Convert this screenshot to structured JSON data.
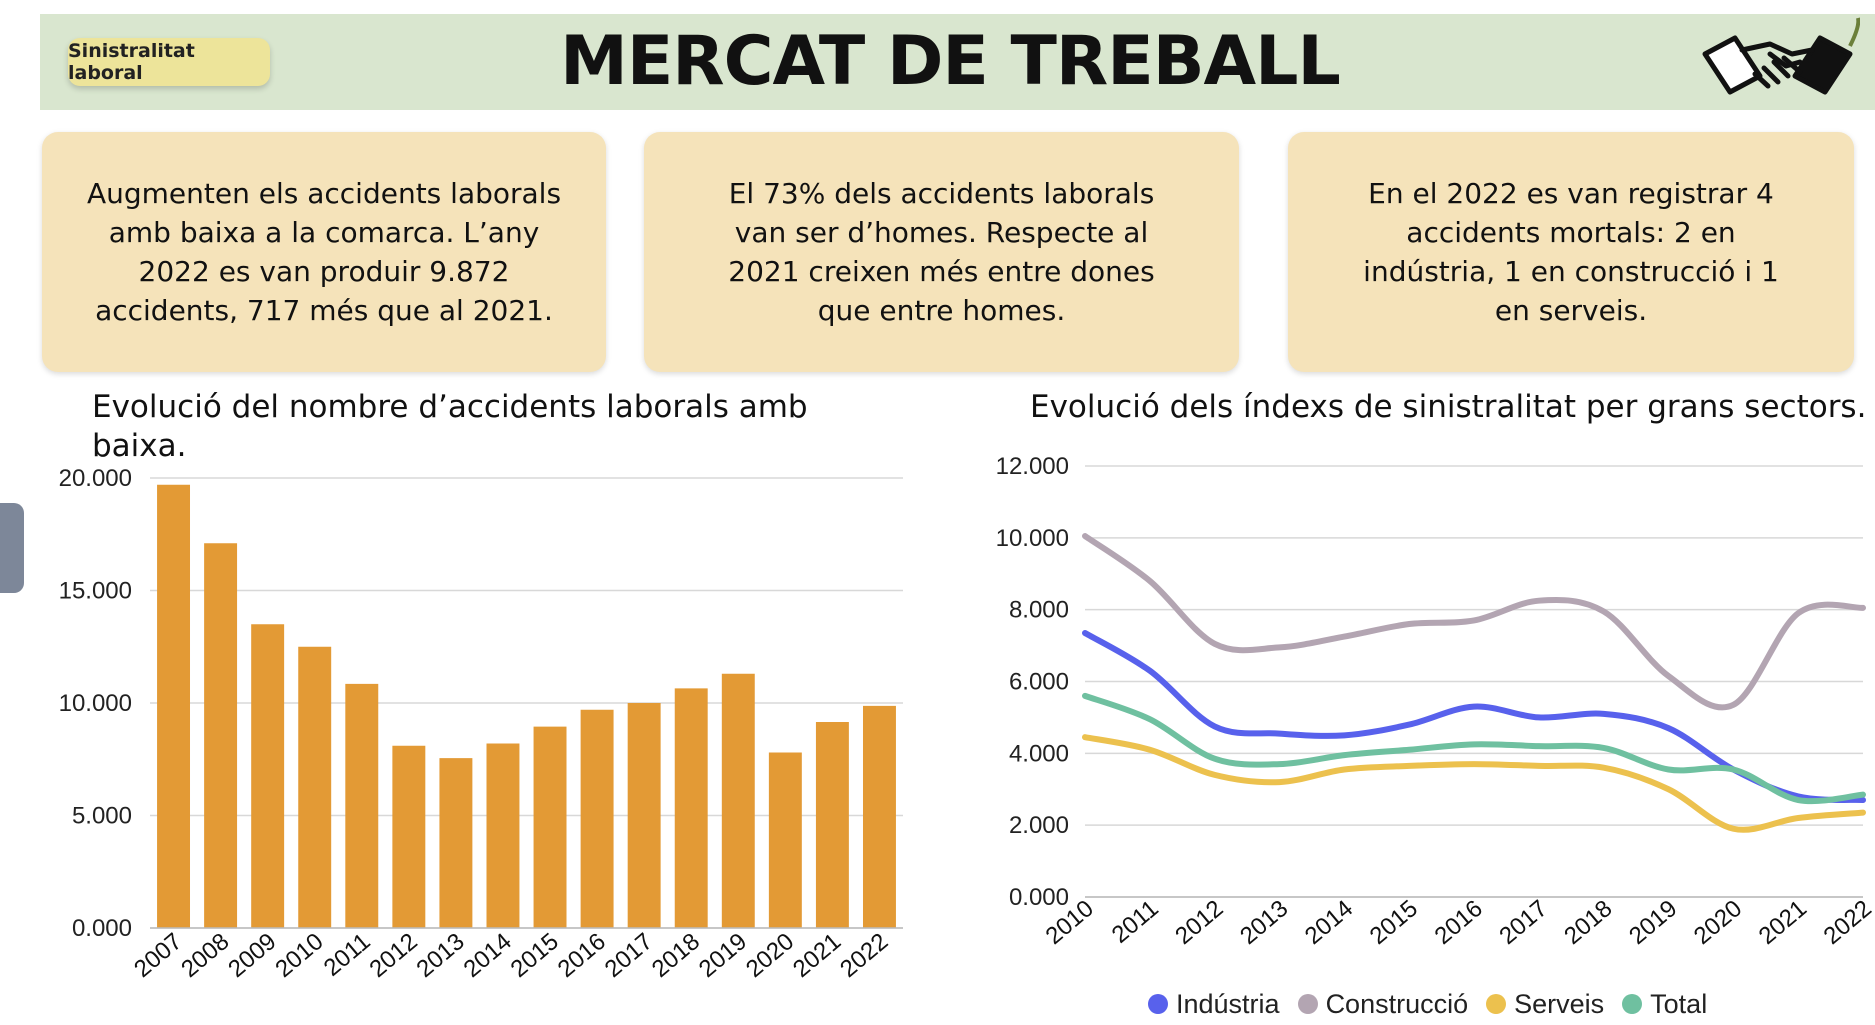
{
  "header": {
    "badge": "Sinistralitat laboral",
    "title": "MERCAT DE TREBALL",
    "logo_icon": "handshake-icon"
  },
  "cards": [
    {
      "lines": [
        "Augmenten els accidents laborals",
        "amb baixa a la comarca. L’any",
        "2022 es van produir 9.872",
        "accidents, 717 més que al 2021."
      ]
    },
    {
      "lines": [
        "El 73% dels accidents laborals",
        "van ser d’homes. Respecte al",
        "2021 creixen més entre dones",
        "que entre homes."
      ]
    },
    {
      "lines": [
        "En el 2022 es van registrar 4",
        "accidents mortals: 2 en",
        "indústria, 1 en construcció i 1",
        "en serveis."
      ]
    }
  ],
  "colors": {
    "banner": "#d9e6cf",
    "card": "#f5e3ba",
    "bar": "#e39a35",
    "industria": "#5861ec",
    "construccio": "#b3a5b2",
    "serveis": "#ecc14e",
    "total": "#6fc0a0"
  },
  "chart_data": [
    {
      "type": "bar",
      "title": "Evolució del nombre d’accidents laborals amb baixa.",
      "categories": [
        "2007",
        "2008",
        "2009",
        "2010",
        "2011",
        "2012",
        "2013",
        "2014",
        "2015",
        "2016",
        "2017",
        "2018",
        "2019",
        "2020",
        "2021",
        "2022"
      ],
      "values": [
        19700,
        17100,
        13500,
        12500,
        10850,
        8100,
        7550,
        8200,
        8950,
        9700,
        10000,
        10650,
        11300,
        7800,
        9155,
        9872
      ],
      "ylim": [
        0,
        20000
      ],
      "yticks": [
        "0.000",
        "5.000",
        "10.000",
        "15.000",
        "20.000"
      ],
      "ytick_values": [
        0,
        5000,
        10000,
        15000,
        20000
      ],
      "grid": true,
      "color": "#e39a35"
    },
    {
      "type": "line",
      "title": "Evolució dels índexs de sinistralitat per grans sectors.",
      "x": [
        "2010",
        "2011",
        "2012",
        "2013",
        "2014",
        "2015",
        "2016",
        "2017",
        "2018",
        "2019",
        "2020",
        "2021",
        "2022"
      ],
      "series": [
        {
          "name": "Indústria",
          "color": "#5861ec",
          "values": [
            7350,
            6300,
            4750,
            4550,
            4500,
            4800,
            5300,
            5000,
            5100,
            4700,
            3550,
            2800,
            2700
          ]
        },
        {
          "name": "Construcció",
          "color": "#b3a5b2",
          "values": [
            10050,
            8800,
            7050,
            6950,
            7250,
            7600,
            7700,
            8250,
            7950,
            6150,
            5350,
            7900,
            8050
          ]
        },
        {
          "name": "Serveis",
          "color": "#ecc14e",
          "values": [
            4450,
            4100,
            3400,
            3200,
            3550,
            3650,
            3700,
            3650,
            3600,
            3000,
            1900,
            2200,
            2350
          ]
        },
        {
          "name": "Total",
          "color": "#6fc0a0",
          "values": [
            5600,
            4950,
            3850,
            3700,
            3950,
            4100,
            4250,
            4200,
            4150,
            3550,
            3550,
            2700,
            2850
          ]
        }
      ],
      "ylim": [
        0,
        12000
      ],
      "yticks": [
        "0.000",
        "2.000",
        "4.000",
        "6.000",
        "8.000",
        "10.000",
        "12.000"
      ],
      "ytick_values": [
        0,
        2000,
        4000,
        6000,
        8000,
        10000,
        12000
      ],
      "grid": true,
      "legend_position": "bottom"
    }
  ]
}
